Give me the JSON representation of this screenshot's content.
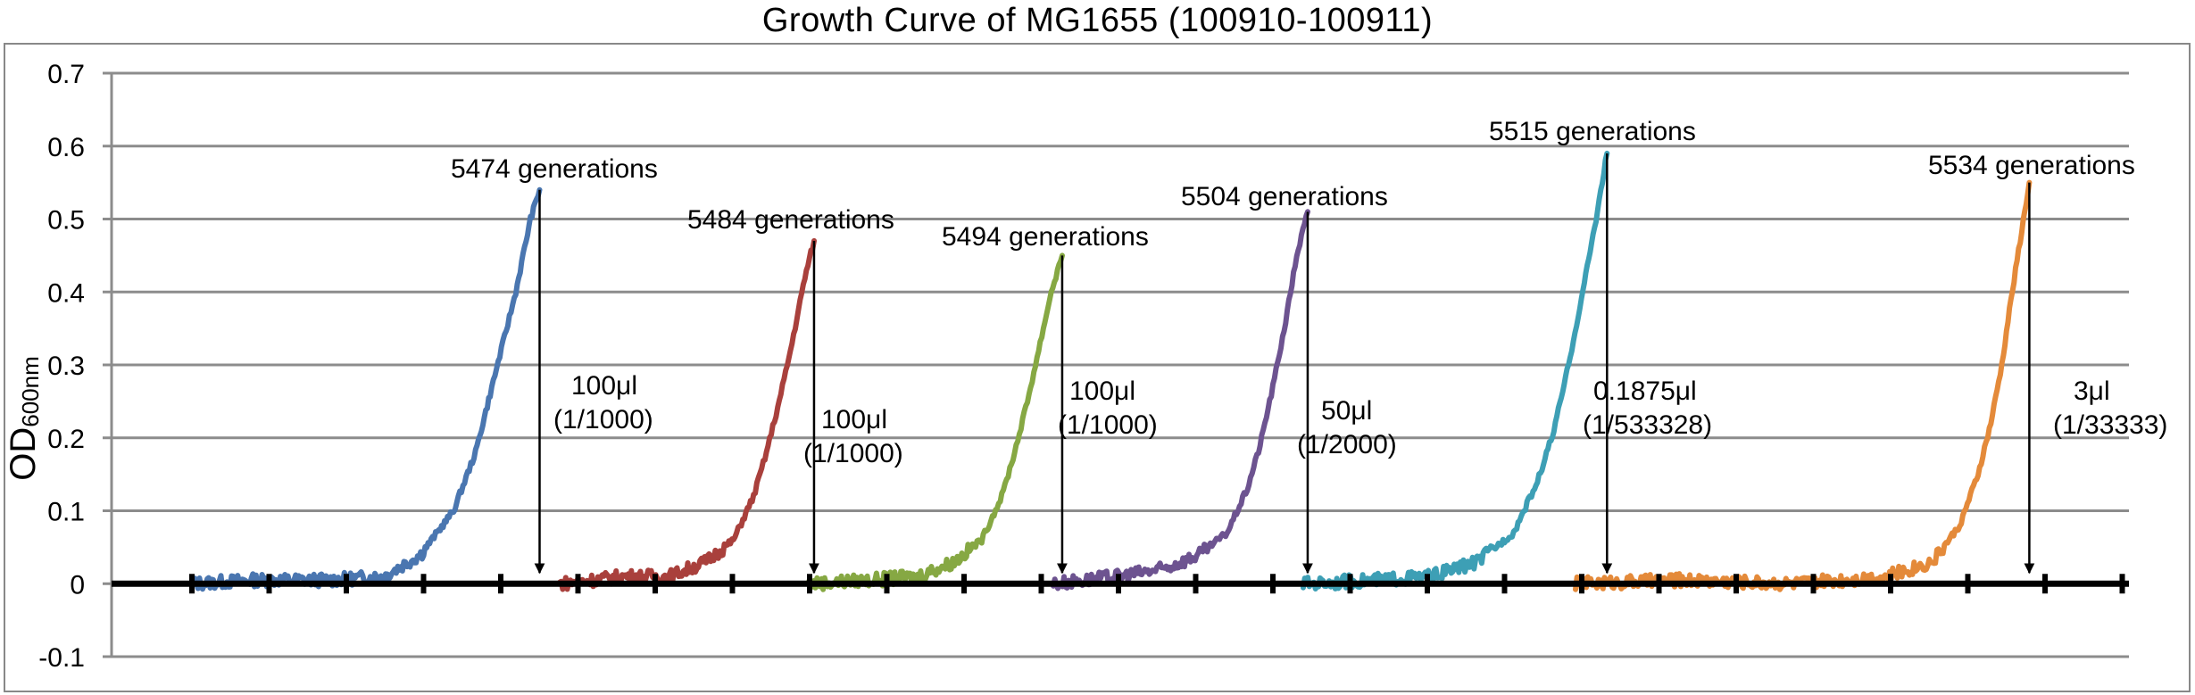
{
  "chart_data": {
    "type": "line",
    "title": "Growth Curve of MG1655 (100910-100911)",
    "ylabel": "OD",
    "ylabel_sub": "600nm",
    "xlabel": "",
    "ylim": [
      -0.1,
      0.7
    ],
    "yticks": [
      "0.7",
      "0.6",
      "0.5",
      "0.4",
      "0.3",
      "0.2",
      "0.1",
      "0",
      "-0.1"
    ],
    "grid": "horizontal",
    "legend": "none",
    "series": [
      {
        "color": "#4a76b0",
        "x": [
          0,
          35,
          75,
          105,
          125,
          143,
          155,
          163,
          170,
          177,
          185,
          190
        ],
        "y": [
          0,
          0.005,
          0.005,
          0.01,
          0.04,
          0.1,
          0.18,
          0.26,
          0.33,
          0.4,
          0.5,
          0.54
        ]
      },
      {
        "color": "#a9403c",
        "x": [
          0,
          35,
          60,
          80,
          95,
          106,
          113,
          120,
          127,
          134,
          139
        ],
        "y": [
          0,
          0.01,
          0.01,
          0.03,
          0.06,
          0.12,
          0.18,
          0.25,
          0.33,
          0.42,
          0.47
        ]
      },
      {
        "color": "#86a843",
        "x": [
          0,
          35,
          60,
          80,
          95,
          106,
          113,
          120,
          127,
          133,
          139
        ],
        "y": [
          0,
          0.005,
          0.01,
          0.03,
          0.06,
          0.12,
          0.18,
          0.25,
          0.33,
          0.4,
          0.45
        ]
      },
      {
        "color": "#6d5390",
        "x": [
          0,
          35,
          60,
          80,
          95,
          106,
          113,
          120,
          127,
          133,
          139
        ],
        "y": [
          0,
          0.01,
          0.02,
          0.04,
          0.07,
          0.13,
          0.19,
          0.27,
          0.36,
          0.45,
          0.51
        ]
      },
      {
        "color": "#3d9fb5",
        "x": [
          0,
          40,
          70,
          95,
          115,
          128,
          137,
          145,
          152,
          160,
          166
        ],
        "y": [
          0,
          0.005,
          0.01,
          0.03,
          0.07,
          0.14,
          0.21,
          0.3,
          0.39,
          0.5,
          0.59
        ]
      },
      {
        "color": "#e48a3a",
        "x": [
          0,
          60,
          120,
          170,
          195,
          210,
          220,
          227,
          233,
          238,
          243,
          248
        ],
        "y": [
          0,
          0.005,
          0.0,
          0.01,
          0.03,
          0.08,
          0.15,
          0.22,
          0.3,
          0.39,
          0.47,
          0.55
        ]
      }
    ],
    "annotations": [
      {
        "generations": "5474 generations",
        "volume": "100μl",
        "dilution": "(1/1000)"
      },
      {
        "generations": "5484 generations",
        "volume": "100μl",
        "dilution": "(1/1000)"
      },
      {
        "generations": "5494 generations",
        "volume": "100μl",
        "dilution": "(1/1000)"
      },
      {
        "generations": "5504 generations",
        "volume": "50μl",
        "dilution": "(1/2000)"
      },
      {
        "generations": "5515 generations",
        "volume": "0.1875μl",
        "dilution": "(1/533328)"
      },
      {
        "generations": "5534 generations",
        "volume": "3μl",
        "dilution": "(1/33333)"
      }
    ]
  }
}
